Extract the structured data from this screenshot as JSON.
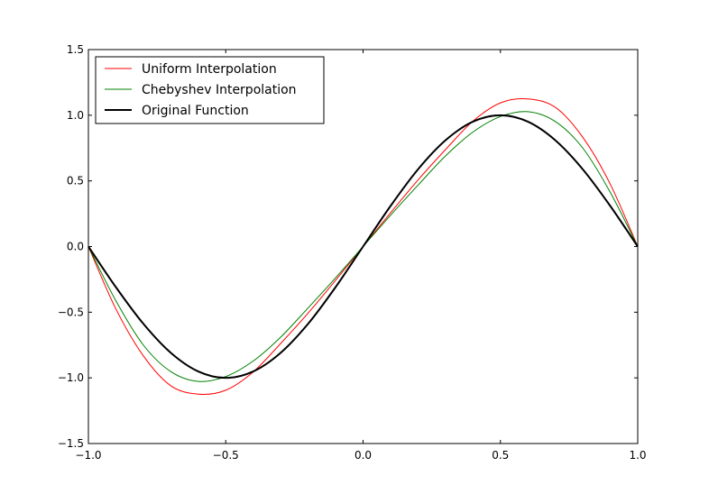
{
  "chart_data": {
    "type": "line",
    "title": "",
    "xlabel": "",
    "ylabel": "",
    "xlim": [
      -1.0,
      1.0
    ],
    "ylim": [
      -1.5,
      1.5
    ],
    "grid": false,
    "legend_position": "upper-left",
    "x_ticks": [
      -1.0,
      -0.5,
      0.0,
      0.5,
      1.0
    ],
    "x_tick_labels": [
      "−1.0",
      "−0.5",
      "0.0",
      "0.5",
      "1.0"
    ],
    "y_ticks": [
      -1.5,
      -1.0,
      -0.5,
      0.0,
      0.5,
      1.0,
      1.5
    ],
    "y_tick_labels": [
      "−1.5",
      "−1.0",
      "−0.5",
      "0.0",
      "0.5",
      "1.0",
      "1.5"
    ],
    "x": [
      -1.0,
      -0.9,
      -0.8,
      -0.7,
      -0.6,
      -0.5,
      -0.4,
      -0.3,
      -0.2,
      -0.1,
      0.0,
      0.1,
      0.2,
      0.3,
      0.4,
      0.5,
      0.6,
      0.7,
      0.8,
      0.9,
      1.0
    ],
    "series": [
      {
        "name": "Uniform Interpolation",
        "color": "#ff0000",
        "width": 1,
        "values": [
          0.0,
          -0.475,
          -0.832,
          -1.06,
          -1.124,
          -1.094,
          -0.955,
          -0.738,
          -0.507,
          -0.257,
          0.0,
          0.257,
          0.507,
          0.738,
          0.955,
          1.094,
          1.124,
          1.06,
          0.832,
          0.475,
          0.0
        ]
      },
      {
        "name": "Chebyshev Interpolation",
        "color": "#008000",
        "width": 1,
        "values": [
          0.0,
          -0.413,
          -0.75,
          -0.952,
          -1.027,
          -0.99,
          -0.872,
          -0.69,
          -0.467,
          -0.238,
          0.0,
          0.238,
          0.467,
          0.69,
          0.872,
          0.99,
          1.027,
          0.952,
          0.75,
          0.413,
          0.0
        ]
      },
      {
        "name": "Original Function",
        "color": "#000000",
        "width": 2,
        "values": [
          0.0,
          -0.309,
          -0.588,
          -0.809,
          -0.951,
          -1.0,
          -0.951,
          -0.809,
          -0.588,
          -0.309,
          0.0,
          0.309,
          0.588,
          0.809,
          0.951,
          1.0,
          0.951,
          0.809,
          0.588,
          0.309,
          0.0
        ]
      }
    ]
  }
}
